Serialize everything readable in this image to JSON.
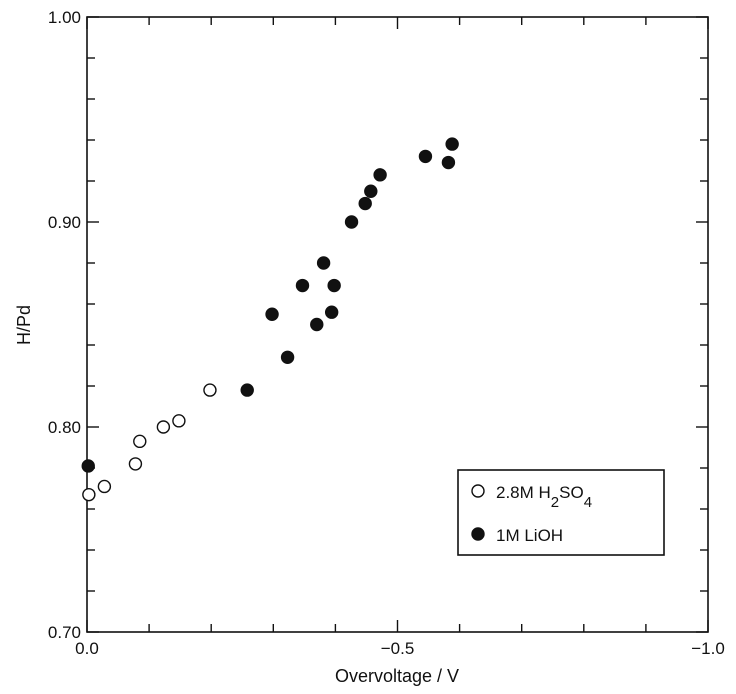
{
  "chart_data": {
    "type": "scatter",
    "xlabel": "Overvoltage / V",
    "ylabel": "H/Pd",
    "xlim": [
      0.0,
      -1.0
    ],
    "ylim": [
      0.7,
      1.0
    ],
    "x_ticks": [
      0.0,
      -0.5,
      -1.0
    ],
    "x_tick_labels": [
      "0.0",
      "−0.5",
      "−1.0"
    ],
    "y_ticks": [
      0.7,
      0.8,
      0.9,
      1.0
    ],
    "y_tick_labels": [
      "0.70",
      "0.80",
      "0.90",
      "1.00"
    ],
    "grid": false,
    "legend_position": "bottom-right",
    "series": [
      {
        "name": "2.8M H2SO4",
        "marker": "open-circle",
        "color": "#111111",
        "points": [
          {
            "x": -0.003,
            "y": 0.767
          },
          {
            "x": -0.028,
            "y": 0.771
          },
          {
            "x": -0.078,
            "y": 0.782
          },
          {
            "x": -0.085,
            "y": 0.793
          },
          {
            "x": -0.123,
            "y": 0.8
          },
          {
            "x": -0.148,
            "y": 0.803
          },
          {
            "x": -0.198,
            "y": 0.818
          }
        ]
      },
      {
        "name": "1M LiOH",
        "marker": "filled-circle",
        "color": "#111111",
        "points": [
          {
            "x": -0.002,
            "y": 0.781
          },
          {
            "x": -0.258,
            "y": 0.818
          },
          {
            "x": -0.298,
            "y": 0.855
          },
          {
            "x": -0.323,
            "y": 0.834
          },
          {
            "x": -0.347,
            "y": 0.869
          },
          {
            "x": -0.37,
            "y": 0.85
          },
          {
            "x": -0.381,
            "y": 0.88
          },
          {
            "x": -0.394,
            "y": 0.856
          },
          {
            "x": -0.398,
            "y": 0.869
          },
          {
            "x": -0.426,
            "y": 0.9
          },
          {
            "x": -0.448,
            "y": 0.909
          },
          {
            "x": -0.457,
            "y": 0.915
          },
          {
            "x": -0.472,
            "y": 0.923
          },
          {
            "x": -0.545,
            "y": 0.932
          },
          {
            "x": -0.582,
            "y": 0.929
          },
          {
            "x": -0.588,
            "y": 0.938
          }
        ]
      }
    ],
    "legend": {
      "entries": [
        {
          "label_main": "2.8M H",
          "label_sub1": "2",
          "label_mid": "SO",
          "label_sub2": "4"
        },
        {
          "label_main": "1M LiOH"
        }
      ]
    }
  }
}
